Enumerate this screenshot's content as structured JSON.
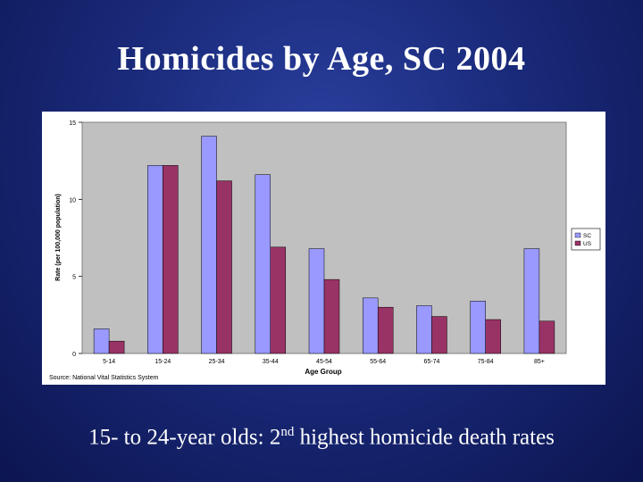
{
  "slide": {
    "title": "Homicides by Age, SC 2004"
  },
  "caption": {
    "prefix": "15- to 24-year olds: 2",
    "superscript": "nd",
    "suffix": " highest homicide death rates"
  },
  "chart_data": {
    "type": "bar",
    "categories": [
      "5-14",
      "15-24",
      "25-34",
      "35-44",
      "45-54",
      "55-64",
      "65-74",
      "75-84",
      "85+"
    ],
    "series": [
      {
        "name": "SC",
        "values": [
          1.6,
          12.2,
          14.1,
          11.6,
          6.8,
          3.6,
          3.1,
          3.4,
          6.8
        ],
        "color": "#9999ff"
      },
      {
        "name": "US",
        "values": [
          0.8,
          12.2,
          11.2,
          6.9,
          4.8,
          3.0,
          2.4,
          2.2,
          2.1
        ],
        "color": "#993366"
      }
    ],
    "xlabel": "Age Group",
    "ylabel": "Rate (per 100,000 population)",
    "ylim": [
      0,
      15
    ],
    "yticks": [
      0,
      5,
      10,
      15
    ],
    "source": "Source: National Vital Statistics System",
    "legend_position": "right",
    "grid": false
  },
  "colors": {
    "background": "#1a2a7a",
    "plot_area": "#c0c0c0"
  }
}
